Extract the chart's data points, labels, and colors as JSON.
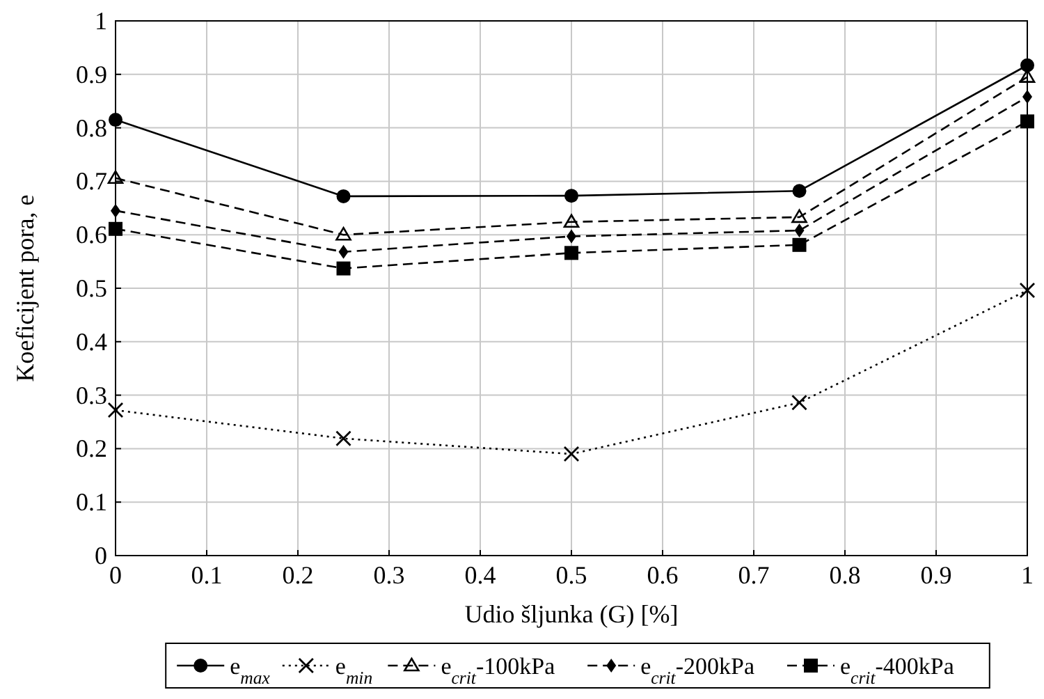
{
  "chart_data": {
    "type": "line",
    "xlabel": "Udio šljunka (G) [%]",
    "ylabel": "Koeficijent pora, e",
    "x": [
      0,
      0.25,
      0.5,
      0.75,
      1
    ],
    "series": [
      {
        "name": "e$_{max}$",
        "color": "#000000",
        "values": [
          0.815,
          0.672,
          0.673,
          0.682,
          0.917
        ],
        "marker": "circle",
        "line_style": "solid"
      },
      {
        "name": "e$_{min}$",
        "color": "#000000",
        "values": [
          0.272,
          0.219,
          0.19,
          0.286,
          0.496
        ],
        "marker": "cross",
        "line_style": "dotted"
      },
      {
        "name": "e$_{crit}$-100kPa",
        "color": "#000000",
        "values": [
          0.706,
          0.6,
          0.624,
          0.633,
          0.895
        ],
        "marker": "triangle",
        "line_style": "dashed"
      },
      {
        "name": "e$_{crit}$-200kPa",
        "color": "#000000",
        "values": [
          0.645,
          0.568,
          0.597,
          0.608,
          0.858
        ],
        "marker": "diamond",
        "line_style": "dashed"
      },
      {
        "name": "e$_{crit}$-400kPa",
        "color": "#000000",
        "values": [
          0.611,
          0.537,
          0.566,
          0.581,
          0.812
        ],
        "marker": "square",
        "line_style": "dashed"
      }
    ],
    "xlim": [
      0,
      1
    ],
    "xticks": [
      0,
      0.1,
      0.2,
      0.3,
      0.4,
      0.5,
      0.6,
      0.7,
      0.8,
      0.9,
      1
    ],
    "ylim": [
      0,
      1
    ],
    "yticks": [
      0,
      0.1,
      0.2,
      0.3,
      0.4,
      0.5,
      0.6,
      0.7,
      0.8,
      0.9,
      1
    ],
    "grid": true,
    "legend": "bottom"
  }
}
